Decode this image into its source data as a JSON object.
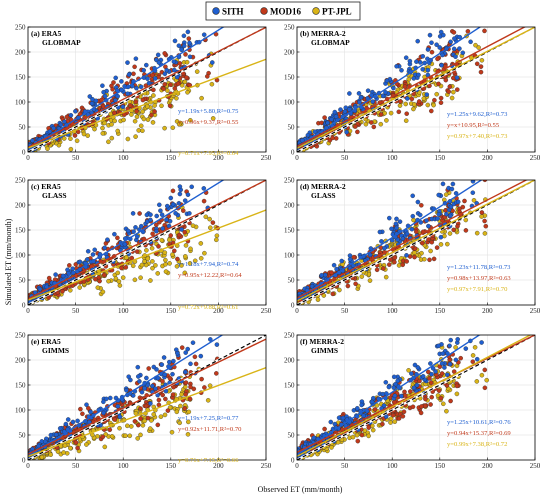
{
  "colors": {
    "SITH": "#1f5fd0",
    "MOD16": "#c0391b",
    "PT-JPL": "#d9b417",
    "point_stroke": "#2a2a2a",
    "one_to_one": "#000000",
    "grid": "#dddddd"
  },
  "legend": {
    "placement": "top-center",
    "items": [
      {
        "label": "SITH",
        "color": "#1f5fd0"
      },
      {
        "label": "MOD16",
        "color": "#c0391b"
      },
      {
        "label": "PT-JPL",
        "color": "#d9b417"
      }
    ]
  },
  "xlabel": "Observed ET (mm/month)",
  "ylabel": "Simulated ET (mm/month)",
  "chart_data": [
    {
      "type": "scatter",
      "panel": "(a)",
      "forcing": "ERA5",
      "product": "GLOBMAP",
      "xlim": [
        0,
        250
      ],
      "ylim": [
        0,
        250
      ],
      "xticks": [
        0,
        50,
        100,
        150,
        200,
        250
      ],
      "yticks": [
        0,
        50,
        100,
        150,
        200,
        250
      ],
      "series": [
        {
          "name": "SITH",
          "slope": 1.19,
          "intercept": 5.8,
          "r2": 0.75,
          "equation": "y=1.19x+5.80,R²=0.75"
        },
        {
          "name": "MOD16",
          "slope": 0.96,
          "intercept": 9.37,
          "r2": 0.55,
          "equation": "y=0.96x+9.37,R²=0.55"
        },
        {
          "name": "PT-JPL",
          "slope": 0.71,
          "intercept": 7.95,
          "r2": 0.64,
          "equation": "y=0.71x+7.95,R²=0.64"
        }
      ]
    },
    {
      "type": "scatter",
      "panel": "(b)",
      "forcing": "MERRA-2",
      "product": "GLOBMAP",
      "xlim": [
        0,
        250
      ],
      "ylim": [
        0,
        250
      ],
      "xticks": [
        0,
        50,
        100,
        150,
        200,
        250
      ],
      "yticks": [
        0,
        50,
        100,
        150,
        200,
        250
      ],
      "series": [
        {
          "name": "SITH",
          "slope": 1.25,
          "intercept": 9.62,
          "r2": 0.73,
          "equation": "y=1.25x+9.62,R²=0.73"
        },
        {
          "name": "MOD16",
          "slope": 1.0,
          "intercept": 10.95,
          "r2": 0.55,
          "equation": "y=x+10.95,R²=0.55"
        },
        {
          "name": "PT-JPL",
          "slope": 0.97,
          "intercept": 7.4,
          "r2": 0.73,
          "equation": "y=0.97x+7.40,R²=0.73"
        }
      ]
    },
    {
      "type": "scatter",
      "panel": "(c)",
      "forcing": "ERA5",
      "product": "GLASS",
      "xlim": [
        0,
        250
      ],
      "ylim": [
        0,
        250
      ],
      "xticks": [
        0,
        50,
        100,
        150,
        200,
        250
      ],
      "yticks": [
        0,
        50,
        100,
        150,
        200,
        250
      ],
      "series": [
        {
          "name": "SITH",
          "slope": 1.18,
          "intercept": 7.94,
          "r2": 0.74,
          "equation": "y=1.18x+7.94,R²=0.74"
        },
        {
          "name": "MOD16",
          "slope": 0.95,
          "intercept": 12.22,
          "r2": 0.64,
          "equation": "y=0.95x+12.22,R²=0.64"
        },
        {
          "name": "PT-JPL",
          "slope": 0.72,
          "intercept": 9.88,
          "r2": 0.61,
          "equation": "y=0.72x+9.88,R²=0.61"
        }
      ]
    },
    {
      "type": "scatter",
      "panel": "(d)",
      "forcing": "MERRA-2",
      "product": "GLASS",
      "xlim": [
        0,
        250
      ],
      "ylim": [
        0,
        250
      ],
      "xticks": [
        0,
        50,
        100,
        150,
        200,
        250
      ],
      "yticks": [
        0,
        50,
        100,
        150,
        200,
        250
      ],
      "series": [
        {
          "name": "SITH",
          "slope": 1.23,
          "intercept": 11.78,
          "r2": 0.73,
          "equation": "y=1.23x+11.78,R²=0.73"
        },
        {
          "name": "MOD16",
          "slope": 0.98,
          "intercept": 13.97,
          "r2": 0.63,
          "equation": "y=0.98x+13.97,R²=0.63"
        },
        {
          "name": "PT-JPL",
          "slope": 0.97,
          "intercept": 7.91,
          "r2": 0.7,
          "equation": "y=0.97x+7.91,R²=0.70"
        }
      ]
    },
    {
      "type": "scatter",
      "panel": "(e)",
      "forcing": "ERA5",
      "product": "GIMMS",
      "xlim": [
        0,
        250
      ],
      "ylim": [
        0,
        250
      ],
      "xticks": [
        0,
        50,
        100,
        150,
        200,
        250
      ],
      "yticks": [
        0,
        50,
        100,
        150,
        200,
        250
      ],
      "series": [
        {
          "name": "SITH",
          "slope": 1.19,
          "intercept": 7.25,
          "r2": 0.77,
          "equation": "y=1.19x+7.25,R²=0.77"
        },
        {
          "name": "MOD16",
          "slope": 0.92,
          "intercept": 11.71,
          "r2": 0.7,
          "equation": "y=0.92x+11.71,R²=0.70"
        },
        {
          "name": "PT-JPL",
          "slope": 0.71,
          "intercept": 7.15,
          "r2": 0.66,
          "equation": "y=0.71x+7.15,R²=0.66"
        }
      ]
    },
    {
      "type": "scatter",
      "panel": "(f)",
      "forcing": "MERRA-2",
      "product": "GIMMS",
      "xlim": [
        0,
        250
      ],
      "ylim": [
        0,
        250
      ],
      "xticks": [
        0,
        50,
        100,
        150,
        200,
        250
      ],
      "yticks": [
        0,
        50,
        100,
        150,
        200,
        250
      ],
      "series": [
        {
          "name": "SITH",
          "slope": 1.25,
          "intercept": 10.61,
          "r2": 0.76,
          "equation": "y=1.25x+10.61,R²=0.76"
        },
        {
          "name": "MOD16",
          "slope": 0.94,
          "intercept": 15.37,
          "r2": 0.69,
          "equation": "y=0.94x+15.37,R²=0.69"
        },
        {
          "name": "PT-JPL",
          "slope": 0.99,
          "intercept": 7.38,
          "r2": 0.72,
          "equation": "y=0.99x+7.38,R²=0.72"
        }
      ]
    }
  ]
}
